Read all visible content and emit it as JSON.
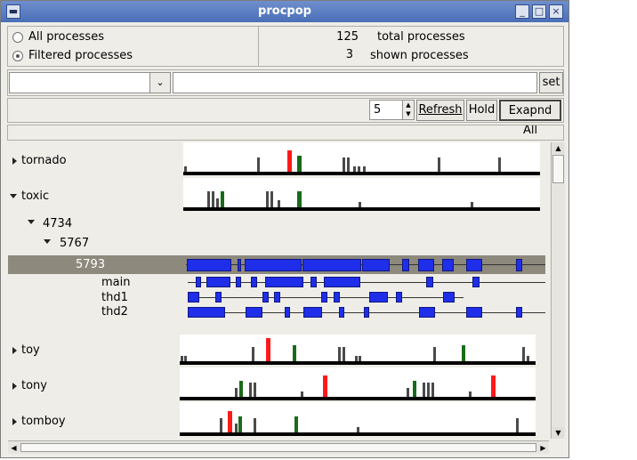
{
  "window": {
    "title": "procpop"
  },
  "filter": {
    "all_label": "All processes",
    "filtered_label": "Filtered processes",
    "selected": "filtered"
  },
  "stats": {
    "total_count": "125",
    "total_label": "total processes",
    "shown_count": "3",
    "shown_label": "shown processes"
  },
  "controls": {
    "combo_value": "",
    "pattern_value": "",
    "set_label": "set",
    "interval_value": "5",
    "refresh_label": "Refresh",
    "hold_label": "Hold",
    "expand_label": "Exapnd All"
  },
  "tree": {
    "tornado": "tornado",
    "toxic": "toxic",
    "pid_4734": "4734",
    "pid_5767": "5767",
    "pid_5793": "5793",
    "thread_main": "main",
    "thread_thd1": "thd1",
    "thread_thd2": "thd2",
    "toy": "toy",
    "tony": "tony",
    "tomboy": "tomboy"
  },
  "colors": {
    "spike_gray": "#4a4a4a",
    "spike_red": "#ff1a1a",
    "spike_green": "#1a6b1a",
    "block_blue": "#1f2ee8",
    "selection": "#8d897d"
  }
}
